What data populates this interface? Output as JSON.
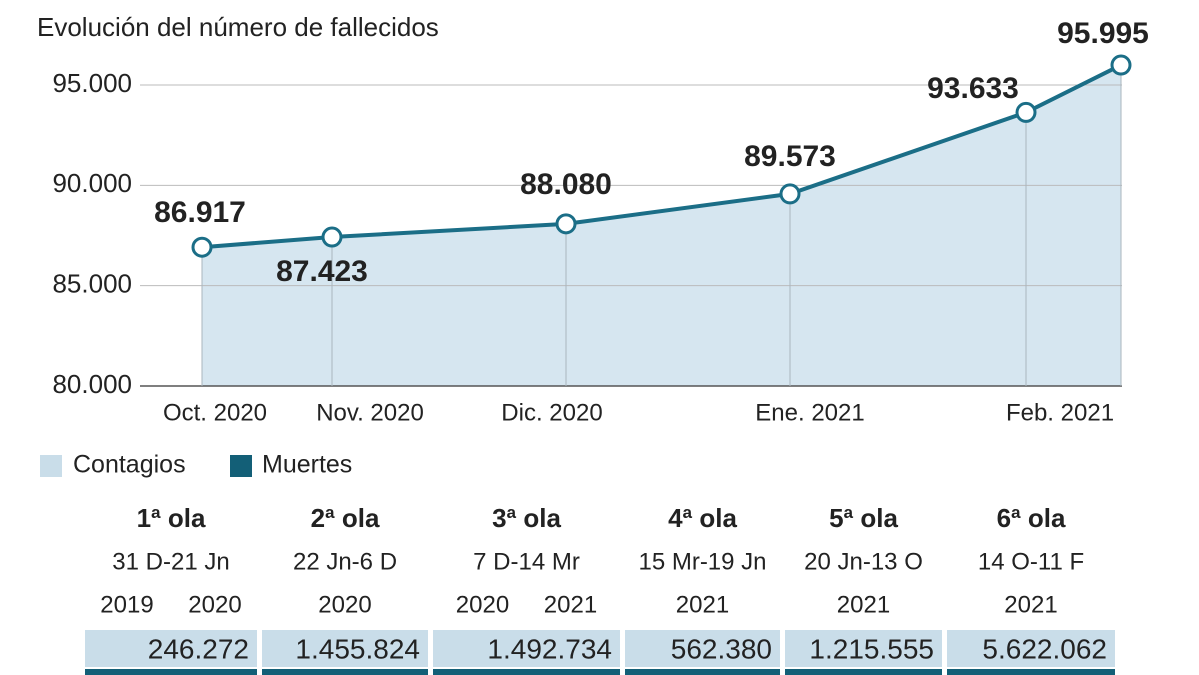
{
  "chart_data": {
    "type": "line",
    "subtitle": "Evolución del número de fallecidos",
    "categories": [
      "Oct. 2020",
      "Nov. 2020",
      "Dic. 2020",
      "Ene. 2021",
      "Feb. 2021",
      null
    ],
    "series": [
      {
        "color": "#1b6e87",
        "area_color": "#d6e6f0",
        "values": [
          86917,
          87423,
          88080,
          89573,
          93633,
          95995
        ],
        "value_labels": [
          "86.917",
          "87.423",
          "88.080",
          "89.573",
          "93.633",
          "95.995"
        ]
      }
    ],
    "ylim": [
      80000,
      96000
    ],
    "yticks": [
      {
        "value": 80000,
        "label": "80.000"
      },
      {
        "value": 85000,
        "label": "85.000"
      },
      {
        "value": 90000,
        "label": "90.000"
      },
      {
        "value": 95000,
        "label": "95.000"
      }
    ],
    "grid": true,
    "legend": [
      {
        "name": "Contagios",
        "color": "#c9dde9"
      },
      {
        "name": "Muertes",
        "color": "#135f77"
      }
    ]
  },
  "table": {
    "headers": [
      "1ª ola",
      "2ª ola",
      "3ª ola",
      "4ª ola",
      "5ª ola",
      "6ª ola"
    ],
    "ranges": [
      "31 D-21 Jn",
      "22 Jn-6 D",
      "7 D-14 Mr",
      "15 Mr-19 Jn",
      "20 Jn-13 O",
      "14 O-11 F"
    ],
    "years": [
      [
        "2019",
        "2020"
      ],
      [
        "2020"
      ],
      [
        "2020",
        "2021"
      ],
      [
        "2021"
      ],
      [
        "2021"
      ],
      [
        "2021"
      ]
    ],
    "contagios": [
      "246.272",
      "1.455.824",
      "1.492.734",
      "562.380",
      "1.215.555",
      "5.622.062"
    ]
  }
}
